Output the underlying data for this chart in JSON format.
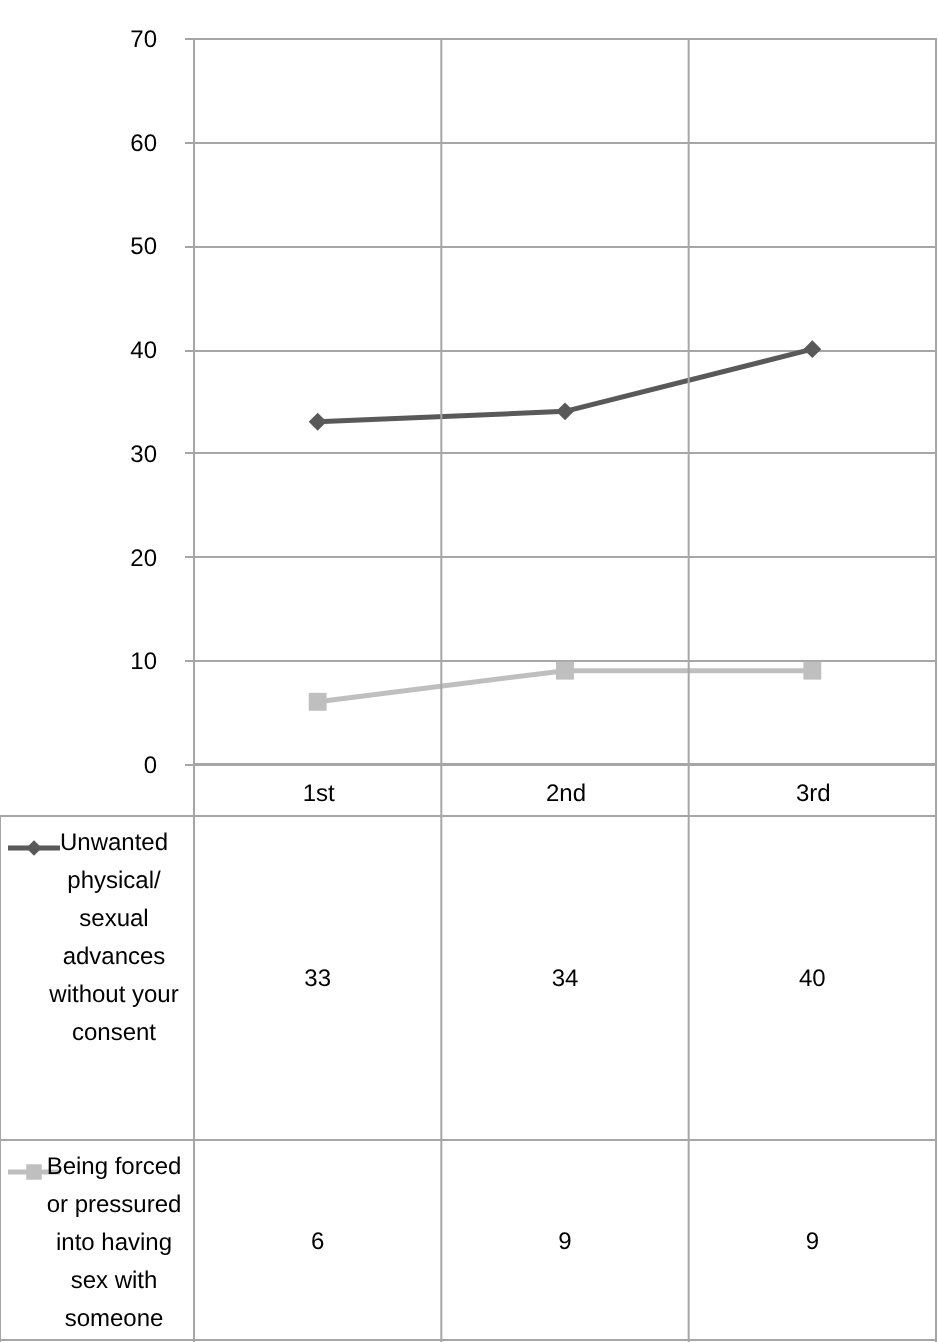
{
  "chart_data": {
    "type": "line",
    "categories": [
      "1st",
      "2nd",
      "3rd"
    ],
    "series": [
      {
        "name": "Unwanted physical/ sexual advances without your consent",
        "color": "#595959",
        "values": [
          33,
          34,
          40
        ],
        "marker": "diamond"
      },
      {
        "name": "Being forced or pressured into having sex with someone",
        "color": "#bfbfbf",
        "values": [
          6,
          9,
          9
        ],
        "marker": "square"
      }
    ],
    "ylim": [
      0,
      70
    ],
    "yticks": [
      0,
      10,
      20,
      30,
      40,
      50,
      60,
      70
    ],
    "grid": true,
    "data_labels": true,
    "legend": "bottom"
  }
}
